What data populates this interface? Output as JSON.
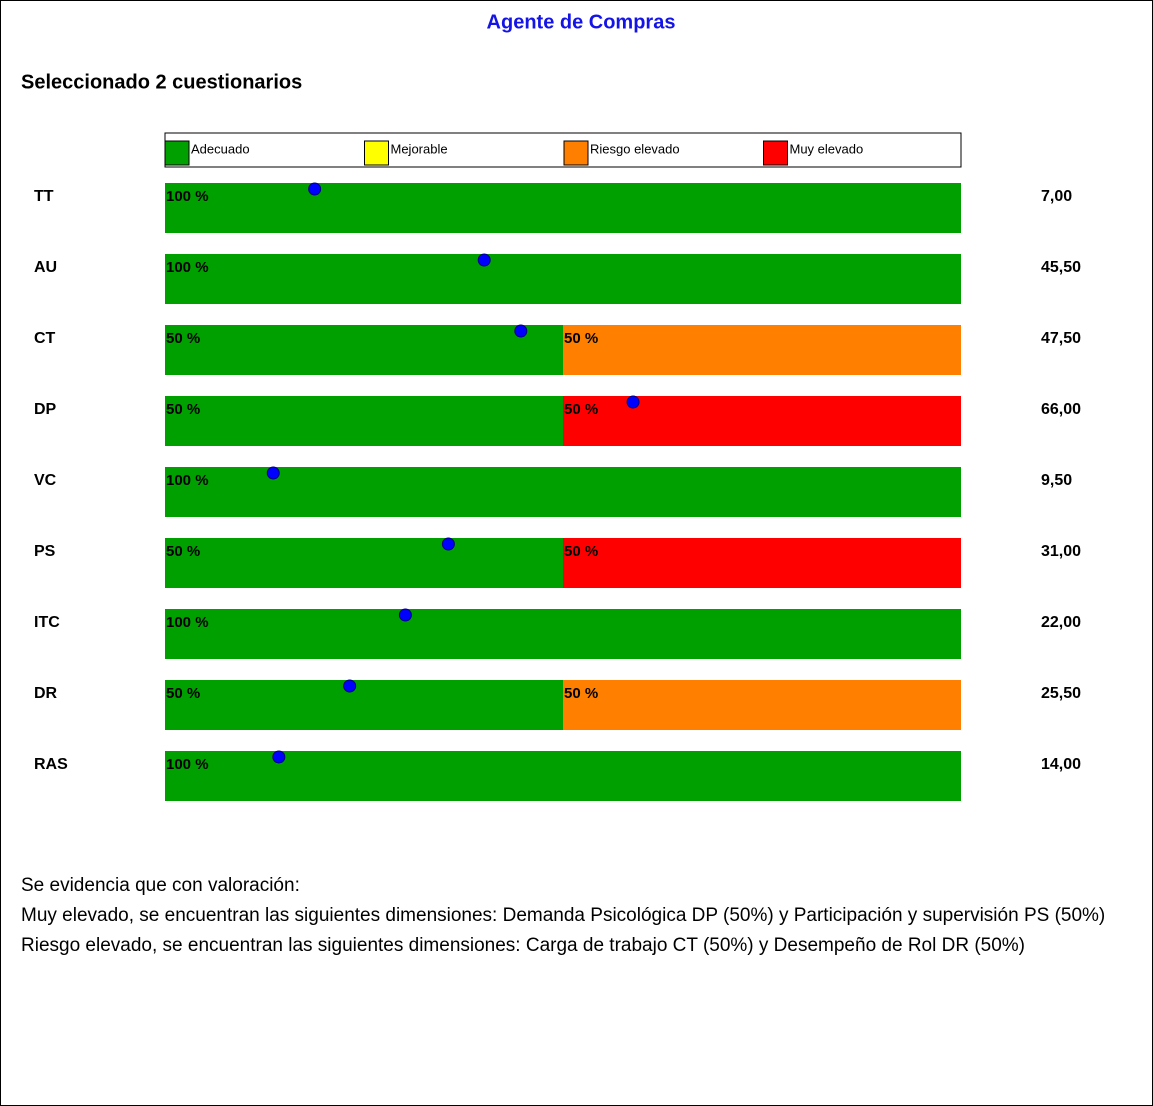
{
  "title": "Agente de Compras",
  "subtitle": "Seleccionado 2 cuestionarios",
  "chart_data": {
    "type": "stacked-barh",
    "categories": [
      "TT",
      "AU",
      "CT",
      "DP",
      "VC",
      "PS",
      "ITC",
      "DR",
      "RAS"
    ],
    "xlim": [
      0,
      100
    ],
    "series": [
      {
        "name": "Adecuado",
        "color": "#00a000",
        "values": [
          100,
          100,
          50,
          50,
          100,
          50,
          100,
          50,
          100
        ],
        "value_labels": [
          "100 %",
          "100 %",
          "50 %",
          "50 %",
          "100 %",
          "50 %",
          "100 %",
          "50 %",
          "100 %"
        ]
      },
      {
        "name": "Mejorable",
        "color": "#ffff00",
        "values": [
          0,
          0,
          0,
          0,
          0,
          0,
          0,
          0,
          0
        ],
        "value_labels": [
          null,
          null,
          null,
          null,
          null,
          null,
          null,
          null,
          null
        ]
      },
      {
        "name": "Riesgo elevado",
        "color": "#ff8000",
        "values": [
          0,
          0,
          50,
          0,
          0,
          0,
          0,
          50,
          0
        ],
        "value_labels": [
          null,
          null,
          "50 %",
          null,
          null,
          null,
          null,
          "50 %",
          null
        ]
      },
      {
        "name": "Muy elevado",
        "color": "#ff0000",
        "values": [
          0,
          0,
          0,
          50,
          0,
          50,
          0,
          0,
          0
        ],
        "value_labels": [
          null,
          null,
          null,
          "50 %",
          null,
          "50 %",
          null,
          null,
          null
        ]
      }
    ],
    "markers": [
      18.8,
      40.1,
      44.7,
      58.8,
      13.6,
      35.6,
      30.2,
      23.2,
      14.3
    ],
    "marker_color": "#0000ff",
    "scores": [
      7,
      45.5,
      47.5,
      66,
      9.5,
      31,
      22,
      25.5,
      14
    ],
    "score_labels": [
      "7,00",
      "45,50",
      "47,50",
      "66,00",
      "9,50",
      "31,00",
      "22,00",
      "25,50",
      "14,00"
    ]
  },
  "text": [
    "Se evidencia que con valoración:",
    "Muy elevado, se encuentran las siguientes dimensiones: Demanda Psicológica DP (50%) y Participación y supervisión PS (50%)",
    "Riesgo elevado, se encuentran las siguientes dimensiones: Carga  de trabajo CT (50%) y Desempeño de Rol DR (50%)"
  ]
}
